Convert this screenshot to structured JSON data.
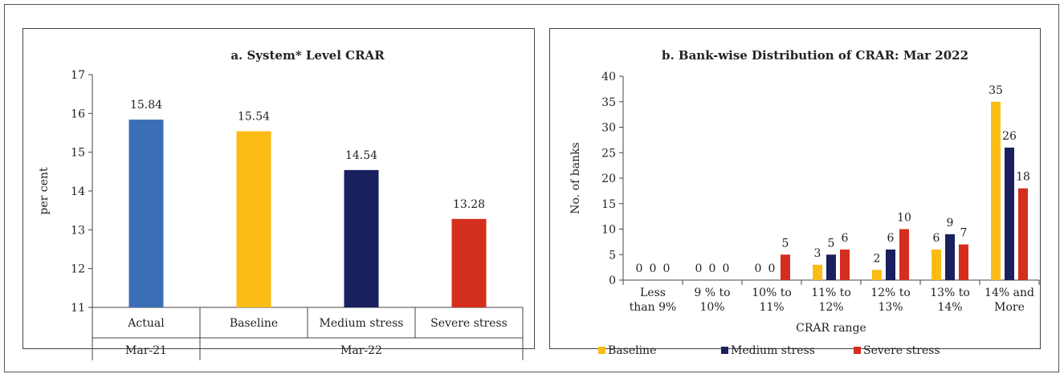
{
  "chart_data": [
    {
      "type": "bar",
      "title": "a. System* Level CRAR",
      "ylabel": "per cent",
      "ylim": [
        11,
        17
      ],
      "yticks": [
        11,
        12,
        13,
        14,
        15,
        16,
        17
      ],
      "categories": [
        "Actual",
        "Baseline",
        "Medium stress",
        "Severe stress"
      ],
      "groups": [
        {
          "label": "Mar-21",
          "categories": [
            "Actual"
          ]
        },
        {
          "label": "Mar-22",
          "categories": [
            "Baseline",
            "Medium stress",
            "Severe stress"
          ]
        }
      ],
      "values": [
        15.84,
        15.54,
        14.54,
        13.28
      ],
      "value_labels": [
        "15.84",
        "15.54",
        "14.54",
        "13.28"
      ],
      "colors": [
        "#3a6fb7",
        "#fbbc15",
        "#1a1f5e",
        "#d42e1f"
      ],
      "grid": false
    },
    {
      "type": "bar",
      "title": "b. Bank-wise Distribution of CRAR: Mar 2022",
      "xlabel": "CRAR range",
      "ylabel": "No. of banks",
      "ylim": [
        0,
        40
      ],
      "yticks": [
        0,
        5,
        10,
        15,
        20,
        25,
        30,
        35,
        40
      ],
      "categories": [
        [
          "Less",
          "than 9%"
        ],
        [
          "9 % to",
          "10%"
        ],
        [
          "10% to",
          "11%"
        ],
        [
          "11% to",
          "12%"
        ],
        [
          "12% to",
          "13%"
        ],
        [
          "13% to",
          "14%"
        ],
        [
          "14% and",
          "More"
        ]
      ],
      "series": [
        {
          "name": "Baseline",
          "color": "#fbbc15",
          "values": [
            0,
            0,
            0,
            3,
            2,
            6,
            35
          ]
        },
        {
          "name": "Medium stress",
          "color": "#1a1f5e",
          "values": [
            0,
            0,
            0,
            5,
            6,
            9,
            26
          ]
        },
        {
          "name": "Severe stress",
          "color": "#d42e1f",
          "values": [
            0,
            0,
            5,
            6,
            10,
            7,
            18
          ]
        }
      ],
      "legend_position": "bottom",
      "grid": false
    }
  ]
}
